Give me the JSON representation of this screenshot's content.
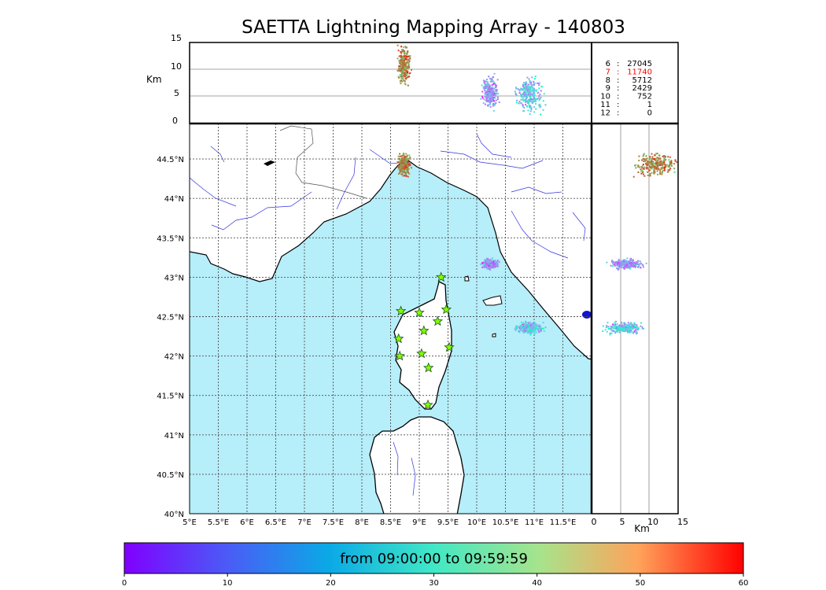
{
  "title": "SAETTA Lightning Mapping Array - 140803",
  "chart_data": {
    "type": "scatter",
    "title": "SAETTA Lightning Mapping Array - 140803",
    "map": {
      "x_ticks": [
        "5°E",
        "5.5°E",
        "6°E",
        "6.5°E",
        "7°E",
        "7.5°E",
        "8°E",
        "8.5°E",
        "9°E",
        "9.5°E",
        "10°E",
        "10.5°E",
        "11°E",
        "11.5°E"
      ],
      "y_ticks": [
        "44.5°N",
        "44°N",
        "43.5°N",
        "43°N",
        "42.5°N",
        "42°N",
        "41.5°N",
        "41°N",
        "40.5°N",
        "40°N"
      ],
      "lon_range": [
        5,
        12
      ],
      "lat_range": [
        40,
        44.95
      ],
      "grid": true,
      "land_color": "#ffffff",
      "sea_color": "#b3ebfa",
      "stations": [
        [
          9.38,
          43.0
        ],
        [
          8.68,
          42.57
        ],
        [
          9.0,
          42.55
        ],
        [
          9.47,
          42.59
        ],
        [
          9.32,
          42.44
        ],
        [
          9.08,
          42.32
        ],
        [
          8.64,
          42.22
        ],
        [
          9.52,
          42.11
        ],
        [
          8.66,
          42.0
        ],
        [
          9.04,
          42.03
        ],
        [
          9.16,
          41.85
        ],
        [
          9.15,
          41.38
        ]
      ]
    },
    "top_panel": {
      "ylabel": "Km",
      "y_ticks": [
        "15",
        "10",
        "5",
        "0"
      ],
      "ylim": [
        0,
        15
      ]
    },
    "right_panel": {
      "xlabel": "Km",
      "x_ticks": [
        "0",
        "5",
        "10",
        "15"
      ],
      "xlim": [
        0,
        15
      ]
    },
    "clusters": [
      {
        "lon": [
          8.57,
          8.86
        ],
        "lat": [
          44.27,
          44.6
        ],
        "alt": [
          7,
          14.8
        ],
        "time": [
          40,
          60
        ]
      },
      {
        "lon": [
          10.05,
          10.38
        ],
        "lat": [
          43.1,
          43.25
        ],
        "alt": [
          2.5,
          9.5
        ],
        "time": [
          0,
          25
        ]
      },
      {
        "lon": [
          10.62,
          11.2
        ],
        "lat": [
          42.28,
          42.45
        ],
        "alt": [
          1.5,
          9.5
        ],
        "time": [
          0,
          35
        ]
      }
    ],
    "stats": [
      {
        "label": "6",
        "sep": ":",
        "value": "27045",
        "color": "#000000"
      },
      {
        "label": "7",
        "sep": ":",
        "value": "11740",
        "color": "#ff0000"
      },
      {
        "label": "8",
        "sep": ":",
        "value": "5712",
        "color": "#000000"
      },
      {
        "label": "9",
        "sep": ":",
        "value": "2429",
        "color": "#000000"
      },
      {
        "label": "10",
        "sep": ":",
        "value": "752",
        "color": "#000000"
      },
      {
        "label": "11",
        "sep": ":",
        "value": "1",
        "color": "#000000"
      },
      {
        "label": "12",
        "sep": ":",
        "value": "0",
        "color": "#000000"
      }
    ],
    "colorbar": {
      "label": "from 09:00:00 to 09:59:59",
      "ticks": [
        "0",
        "10",
        "20",
        "30",
        "40",
        "50",
        "60"
      ],
      "range": [
        0,
        60
      ],
      "colormap": "rainbow"
    }
  }
}
